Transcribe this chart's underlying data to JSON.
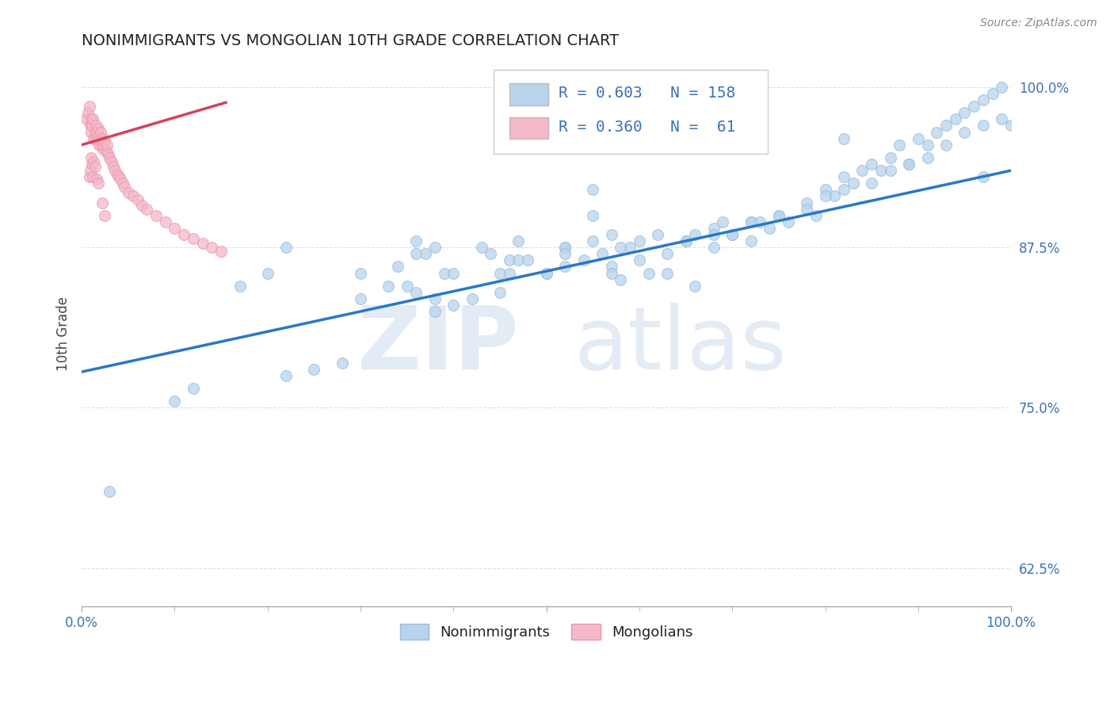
{
  "title": "NONIMMIGRANTS VS MONGOLIAN 10TH GRADE CORRELATION CHART",
  "source": "Source: ZipAtlas.com",
  "ylabel": "10th Grade",
  "ylabel_right_ticks": [
    0.625,
    0.75,
    0.875,
    1.0
  ],
  "ylabel_right_labels": [
    "62.5%",
    "75.0%",
    "87.5%",
    "100.0%"
  ],
  "legend_entries": [
    {
      "label": "Nonimmigrants",
      "R": "0.603",
      "N": "158",
      "color": "#b8d4ec",
      "edge_color": "#9bbcd8"
    },
    {
      "label": "Mongolians",
      "R": "0.360",
      "N": "61",
      "color": "#f5b8c8",
      "edge_color": "#e898ac"
    }
  ],
  "blue_scatter": {
    "color": "#b8d4ec",
    "edge_color": "#9bbcd8",
    "alpha": 0.75,
    "size": 100,
    "x": [
      0.03,
      0.36,
      0.55,
      0.57,
      0.82,
      0.97,
      0.22,
      0.3,
      0.34,
      0.35,
      0.37,
      0.39,
      0.43,
      0.44,
      0.46,
      0.47,
      0.52,
      0.55,
      0.57,
      0.59,
      0.6,
      0.62,
      0.63,
      0.65,
      0.66,
      0.68,
      0.69,
      0.7,
      0.72,
      0.73,
      0.75,
      0.76,
      0.78,
      0.79,
      0.8,
      0.81,
      0.82,
      0.83,
      0.84,
      0.85,
      0.86,
      0.87,
      0.88,
      0.89,
      0.9,
      0.91,
      0.92,
      0.93,
      0.94,
      0.95,
      0.96,
      0.97,
      0.98,
      0.99,
      1.0,
      0.57,
      0.6,
      0.63,
      0.66,
      0.45,
      0.47,
      0.5,
      0.52,
      0.3,
      0.33,
      0.36,
      0.17,
      0.2,
      0.38,
      0.4,
      0.54,
      0.56,
      0.58,
      0.68,
      0.7,
      0.72,
      0.74,
      0.78,
      0.8,
      0.82,
      0.85,
      0.87,
      0.89,
      0.91,
      0.93,
      0.95,
      0.97,
      0.99,
      0.52,
      0.55,
      0.36,
      0.38,
      0.46,
      0.48,
      0.1,
      0.12,
      0.22,
      0.25,
      0.28,
      0.42,
      0.45,
      0.58,
      0.61,
      0.38,
      0.4,
      0.5,
      0.52,
      0.65,
      0.68,
      0.72,
      0.75
    ],
    "y": [
      0.685,
      0.88,
      0.92,
      0.86,
      0.96,
      0.93,
      0.875,
      0.855,
      0.86,
      0.845,
      0.87,
      0.855,
      0.875,
      0.87,
      0.865,
      0.88,
      0.875,
      0.9,
      0.885,
      0.875,
      0.88,
      0.885,
      0.87,
      0.88,
      0.885,
      0.89,
      0.895,
      0.885,
      0.88,
      0.895,
      0.9,
      0.895,
      0.91,
      0.9,
      0.92,
      0.915,
      0.93,
      0.925,
      0.935,
      0.94,
      0.935,
      0.945,
      0.955,
      0.94,
      0.96,
      0.955,
      0.965,
      0.97,
      0.975,
      0.98,
      0.985,
      0.99,
      0.995,
      1.0,
      0.97,
      0.855,
      0.865,
      0.855,
      0.845,
      0.855,
      0.865,
      0.855,
      0.875,
      0.835,
      0.845,
      0.84,
      0.845,
      0.855,
      0.835,
      0.855,
      0.865,
      0.87,
      0.875,
      0.875,
      0.885,
      0.895,
      0.89,
      0.905,
      0.915,
      0.92,
      0.925,
      0.935,
      0.94,
      0.945,
      0.955,
      0.965,
      0.97,
      0.975,
      0.87,
      0.88,
      0.87,
      0.875,
      0.855,
      0.865,
      0.755,
      0.765,
      0.775,
      0.78,
      0.785,
      0.835,
      0.84,
      0.85,
      0.855,
      0.825,
      0.83,
      0.855,
      0.86,
      0.88,
      0.885,
      0.895,
      0.9
    ]
  },
  "pink_scatter": {
    "color": "#f5b8c8",
    "edge_color": "#e898ac",
    "alpha": 0.75,
    "size": 100,
    "x": [
      0.005,
      0.007,
      0.008,
      0.009,
      0.01,
      0.01,
      0.011,
      0.012,
      0.013,
      0.014,
      0.015,
      0.015,
      0.016,
      0.017,
      0.018,
      0.018,
      0.019,
      0.02,
      0.02,
      0.021,
      0.022,
      0.023,
      0.023,
      0.024,
      0.025,
      0.026,
      0.027,
      0.028,
      0.03,
      0.032,
      0.034,
      0.036,
      0.038,
      0.04,
      0.042,
      0.044,
      0.046,
      0.05,
      0.055,
      0.06,
      0.065,
      0.07,
      0.08,
      0.09,
      0.1,
      0.11,
      0.12,
      0.13,
      0.14,
      0.15,
      0.008,
      0.009,
      0.01,
      0.011,
      0.012,
      0.013,
      0.014,
      0.016,
      0.018,
      0.022,
      0.025
    ],
    "y": [
      0.975,
      0.98,
      0.985,
      0.97,
      0.975,
      0.965,
      0.97,
      0.975,
      0.96,
      0.965,
      0.97,
      0.96,
      0.965,
      0.958,
      0.962,
      0.968,
      0.955,
      0.96,
      0.965,
      0.955,
      0.958,
      0.952,
      0.96,
      0.955,
      0.958,
      0.95,
      0.955,
      0.948,
      0.945,
      0.942,
      0.938,
      0.935,
      0.932,
      0.93,
      0.928,
      0.925,
      0.922,
      0.918,
      0.915,
      0.912,
      0.908,
      0.905,
      0.9,
      0.895,
      0.89,
      0.885,
      0.882,
      0.878,
      0.875,
      0.872,
      0.93,
      0.935,
      0.945,
      0.94,
      0.93,
      0.942,
      0.938,
      0.928,
      0.925,
      0.91,
      0.9
    ]
  },
  "blue_trend": {
    "x_start": 0.0,
    "x_end": 1.0,
    "y_start": 0.778,
    "y_end": 0.935,
    "color": "#2878c8",
    "linewidth": 2.5
  },
  "pink_trend": {
    "x_start": 0.0,
    "x_end": 0.155,
    "y_start": 0.955,
    "y_end": 0.988,
    "color": "#d84060",
    "linewidth": 2.5
  },
  "xlim": [
    0.0,
    1.0
  ],
  "ylim": [
    0.595,
    1.02
  ],
  "grid_color": "#c0ccd8",
  "grid_style": "--",
  "grid_alpha": 0.6,
  "background_color": "#ffffff",
  "title_fontsize": 14,
  "title_color": "#222222",
  "axis_label_color": "#3a72b8",
  "tick_label_color": "#3a72b8",
  "legend_R_N_color": "#3a72b8",
  "watermark_zip": "ZIP",
  "watermark_atlas": "atlas",
  "watermark_color": "#c8d8ea",
  "watermark_alpha": 0.5,
  "bottom_legend": [
    {
      "label": "Nonimmigrants",
      "color": "#b8d4ec",
      "edge": "#9bbcd8"
    },
    {
      "label": "Mongolians",
      "color": "#f5b8c8",
      "edge": "#e898ac"
    }
  ]
}
